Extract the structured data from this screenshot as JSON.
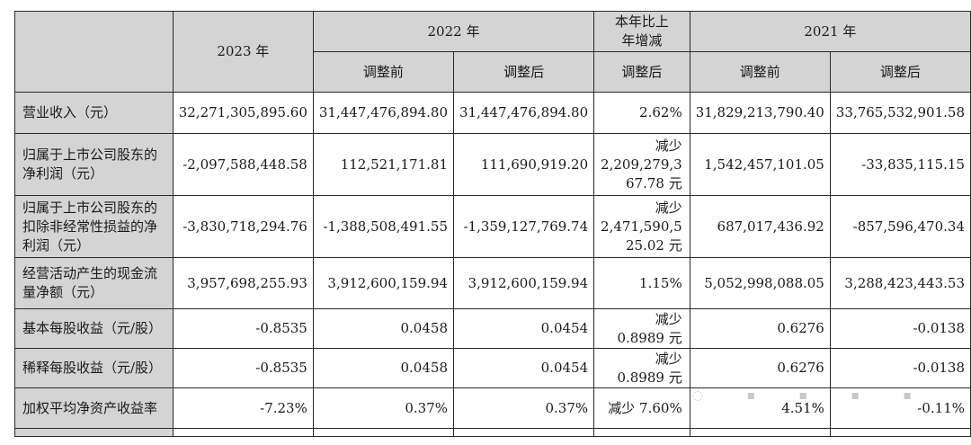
{
  "table": {
    "header": {
      "y2023": "2023 年",
      "y2022": "2022 年",
      "yoy": [
        "本年比上",
        "年增减"
      ],
      "y2021": "2021 年",
      "before": "调整前",
      "after": "调整后"
    },
    "rows": [
      {
        "label": [
          "营业收入（元）"
        ],
        "v2023": "32,271,305,895.60",
        "v2022b": "31,447,476,894.80",
        "v2022a": "31,447,476,894.80",
        "change": [
          "2.62%"
        ],
        "v2021b": "31,829,213,790.40",
        "v2021a": "33,765,532,901.58"
      },
      {
        "label": [
          "归属于上市公司股东的",
          "净利润（元）"
        ],
        "v2023": "-2,097,588,448.58",
        "v2022b": "112,521,171.81",
        "v2022a": "111,690,919.20",
        "change": [
          "减少",
          "2,209,279,3",
          "67.78 元"
        ],
        "v2021b": "1,542,457,101.05",
        "v2021a": "-33,835,115.15"
      },
      {
        "label": [
          "归属于上市公司股东的",
          "扣除非经常性损益的净",
          "利润（元）"
        ],
        "v2023": "-3,830,718,294.76",
        "v2022b": "-1,388,508,491.55",
        "v2022a": "-1,359,127,769.74",
        "change": [
          "减少",
          "2,471,590,5",
          "25.02 元"
        ],
        "v2021b": "687,017,436.92",
        "v2021a": "-857,596,470.34"
      },
      {
        "label": [
          "经营活动产生的现金流",
          "量净额（元）"
        ],
        "v2023": "3,957,698,255.93",
        "v2022b": "3,912,600,159.94",
        "v2022a": "3,912,600,159.94",
        "change": [
          "1.15%"
        ],
        "v2021b": "5,052,998,088.05",
        "v2021a": "3,288,423,443.53"
      },
      {
        "label": [
          "基本每股收益（元/股）"
        ],
        "v2023": "-0.8535",
        "v2022b": "0.0458",
        "v2022a": "0.0454",
        "change": [
          "减少",
          "0.8989 元"
        ],
        "v2021b": "0.6276",
        "v2021a": "-0.0138"
      },
      {
        "label": [
          "稀释每股收益（元/股）"
        ],
        "v2023": "-0.8535",
        "v2022b": "0.0458",
        "v2022a": "0.0454",
        "change": [
          "减少",
          "0.8989 元"
        ],
        "v2021b": "0.6276",
        "v2021a": "-0.0138"
      },
      {
        "label": [
          "加权平均净资产收益率"
        ],
        "v2023": "-7.23%",
        "v2022b": "0.37%",
        "v2022a": "0.37%",
        "change": [
          "减少 7.60%"
        ],
        "v2021b": "4.51%",
        "v2021a": "-0.11%"
      }
    ]
  }
}
